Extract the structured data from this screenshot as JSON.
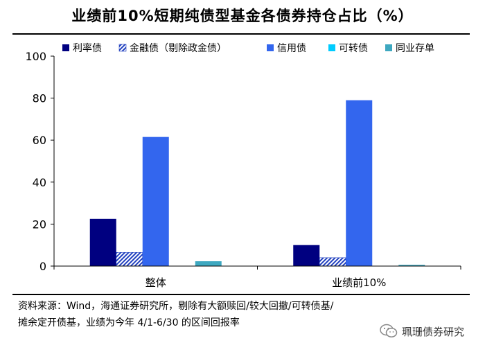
{
  "title": "业绩前10%短期纯债型基金各债券持仓占比（%）",
  "source": {
    "line1": "资料来源：Wind，海通证券研究所，剔除有大额赎回/较大回撤/可转债基/",
    "line2": "摊余定开债基，业绩为今年 4/1-6/30 的区间回报率"
  },
  "watermark": "珮珊债券研究",
  "chart_data": {
    "type": "bar",
    "categories": [
      "整体",
      "业绩前10%"
    ],
    "ylim": [
      0,
      100
    ],
    "yticks": [
      0,
      20,
      40,
      60,
      80,
      100
    ],
    "legend_position": "top",
    "series": [
      {
        "name": "利率债",
        "values": [
          22.5,
          10.0
        ],
        "color": "#000080",
        "pattern": "solid"
      },
      {
        "name": "金融债（剔除政金债）",
        "values": [
          6.5,
          4.0
        ],
        "color": "#1f3fbf",
        "pattern": "hatch"
      },
      {
        "name": "信用债",
        "values": [
          61.5,
          79.0
        ],
        "color": "#3366ee",
        "pattern": "solid"
      },
      {
        "name": "可转债",
        "values": [
          0.0,
          0.0
        ],
        "color": "#00ccff",
        "pattern": "solid"
      },
      {
        "name": "同业存单",
        "values": [
          2.3,
          0.6
        ],
        "color": "#3ea8c0",
        "pattern": "solid"
      }
    ]
  }
}
